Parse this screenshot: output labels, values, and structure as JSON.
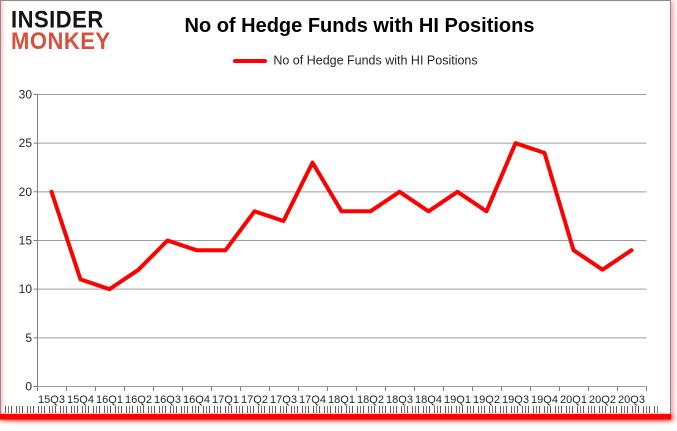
{
  "logo": {
    "line1": "INSIDER",
    "line2": "MONKEY",
    "monkey_color": "#d8503c"
  },
  "header": {
    "title": "No of Hedge Funds with HI Positions"
  },
  "legend": {
    "label": "No of Hedge Funds with HI Positions",
    "marker_color": "#ff0000"
  },
  "colors": {
    "line": "#ff0000",
    "grid": "#9d9d9d",
    "axis": "#7f7f7f",
    "tick_label": "#262626",
    "bottom_bar": "#fe0000"
  },
  "chart_data": {
    "type": "line",
    "title": "No of Hedge Funds with HI Positions",
    "categories": [
      "15Q3",
      "15Q4",
      "16Q1",
      "16Q2",
      "16Q3",
      "16Q4",
      "17Q1",
      "17Q2",
      "17Q3",
      "17Q4",
      "18Q1",
      "18Q2",
      "18Q3",
      "18Q4",
      "19Q1",
      "19Q2",
      "19Q3",
      "19Q4",
      "20Q1",
      "20Q2",
      "20Q3"
    ],
    "series": [
      {
        "name": "No of Hedge Funds with HI Positions",
        "color": "#ff0000",
        "values": [
          20,
          11,
          10,
          12,
          15,
          14,
          14,
          18,
          17,
          23,
          18,
          18,
          20,
          18,
          20,
          18,
          25,
          24,
          14,
          12,
          14
        ]
      }
    ],
    "xlabel": "",
    "ylabel": "",
    "ylim": [
      0,
      30
    ],
    "yticks": [
      0,
      5,
      10,
      15,
      20,
      25,
      30
    ],
    "grid": "horizontal",
    "legend_position": "top-center"
  }
}
